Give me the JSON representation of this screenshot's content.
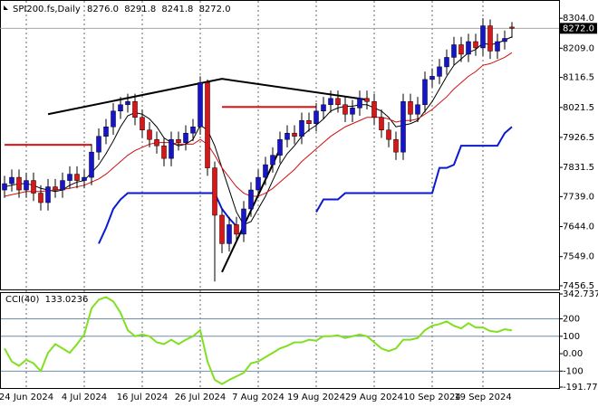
{
  "chart_data": [
    {
      "type": "candlestick",
      "title": "SPI200.fs,Daily",
      "title_values": [
        "8276.0",
        "8291.8",
        "8241.8",
        "8272.0"
      ],
      "last_price_label": "8272.0",
      "categories": [
        null,
        null,
        null,
        "24 Jun 2024",
        null,
        null,
        null,
        null,
        null,
        null,
        null,
        "4 Jul 2024",
        null,
        null,
        null,
        null,
        null,
        null,
        null,
        "16 Jul 2024",
        null,
        null,
        null,
        null,
        null,
        null,
        null,
        "26 Jul 2024",
        null,
        null,
        null,
        null,
        null,
        null,
        null,
        "7 Aug 2024",
        null,
        null,
        null,
        null,
        null,
        null,
        null,
        "19 Aug 2024",
        null,
        null,
        null,
        null,
        null,
        null,
        null,
        "29 Aug 2024",
        null,
        null,
        null,
        null,
        null,
        null,
        null,
        "10 Sep 2024",
        null,
        null,
        null,
        null,
        null,
        null,
        "19 Sep 2024",
        null,
        null,
        null,
        null
      ],
      "open": [
        7760,
        7780,
        7800,
        7760,
        7790,
        7750,
        7720,
        7770,
        7760,
        7790,
        7810,
        7790,
        7800,
        7880,
        7930,
        7960,
        8010,
        8030,
        8040,
        7990,
        7950,
        7920,
        7900,
        7860,
        7920,
        7910,
        7940,
        7960,
        8100,
        7830,
        7680,
        7590,
        7650,
        7620,
        7700,
        7760,
        7800,
        7840,
        7870,
        7920,
        7940,
        7930,
        7980,
        7970,
        8010,
        8030,
        8050,
        8030,
        8000,
        8020,
        8050,
        8040,
        7990,
        7950,
        7920,
        7880,
        8040,
        8000,
        8030,
        8110,
        8120,
        8150,
        8180,
        8220,
        8190,
        8230,
        8210,
        8280,
        8200,
        8230,
        8276
      ],
      "high": [
        7805,
        7825,
        7825,
        7815,
        7815,
        7775,
        7795,
        7795,
        7815,
        7835,
        7835,
        7825,
        7905,
        7955,
        7985,
        8035,
        8055,
        8065,
        8065,
        8015,
        7975,
        7945,
        7925,
        7945,
        7945,
        7965,
        7985,
        8120,
        8110,
        7850,
        7700,
        7675,
        7675,
        7725,
        7785,
        7825,
        7865,
        7895,
        7945,
        7965,
        7965,
        8005,
        8005,
        8035,
        8055,
        8075,
        8075,
        8055,
        8045,
        8075,
        8075,
        8065,
        8015,
        7975,
        7945,
        8065,
        8065,
        8055,
        8135,
        8145,
        8175,
        8205,
        8245,
        8245,
        8255,
        8255,
        8304,
        8300,
        8255,
        8265,
        8291.8
      ],
      "low": [
        7735,
        7755,
        7735,
        7735,
        7725,
        7695,
        7695,
        7735,
        7735,
        7765,
        7765,
        7765,
        7775,
        7855,
        7905,
        7935,
        7985,
        8005,
        7965,
        7925,
        7895,
        7875,
        7835,
        7835,
        7885,
        7885,
        7915,
        7935,
        7805,
        7470,
        7560,
        7565,
        7595,
        7595,
        7675,
        7735,
        7775,
        7815,
        7845,
        7895,
        7905,
        7905,
        7945,
        7945,
        7985,
        8005,
        8005,
        7975,
        7975,
        7995,
        8015,
        7965,
        7925,
        7895,
        7855,
        7855,
        7975,
        7975,
        8005,
        8085,
        8095,
        8125,
        8155,
        8165,
        8165,
        8185,
        8185,
        8175,
        8175,
        8205,
        8241.8
      ],
      "close": [
        7780,
        7800,
        7760,
        7790,
        7750,
        7720,
        7770,
        7760,
        7790,
        7810,
        7790,
        7800,
        7880,
        7930,
        7960,
        8010,
        8030,
        8040,
        7990,
        7950,
        7920,
        7900,
        7860,
        7920,
        7910,
        7940,
        7960,
        8100,
        7830,
        7680,
        7590,
        7650,
        7620,
        7700,
        7760,
        7800,
        7840,
        7870,
        7920,
        7940,
        7930,
        7980,
        7970,
        8010,
        8030,
        8050,
        8030,
        8000,
        8020,
        8050,
        8040,
        7990,
        7950,
        7920,
        7880,
        8040,
        8000,
        8030,
        8110,
        8120,
        8150,
        8180,
        8220,
        8190,
        8230,
        8210,
        8280,
        8200,
        8230,
        8240,
        8272
      ],
      "up_color": "#1414d2",
      "down_color": "#e01414",
      "series": [
        {
          "color": "#000000",
          "width": 1,
          "values": [
            7770,
            7775,
            7780,
            7780,
            7775,
            7765,
            7760,
            7755,
            7760,
            7775,
            7785,
            7790,
            7815,
            7840,
            7875,
            7915,
            7960,
            7995,
            8005,
            8000,
            7985,
            7960,
            7925,
            7910,
            7900,
            7905,
            7920,
            7965,
            7950,
            7900,
            7830,
            7760,
            7690,
            7650,
            7660,
            7700,
            7740,
            7790,
            7840,
            7875,
            7900,
            7930,
            7950,
            7965,
            7985,
            8010,
            8020,
            8025,
            8025,
            8030,
            8030,
            8020,
            8010,
            7990,
            7960,
            7965,
            7970,
            7980,
            8010,
            8040,
            8080,
            8120,
            8155,
            8175,
            8195,
            8205,
            8225,
            8220,
            8225,
            8235,
            8245
          ]
        },
        {
          "color": "#d01010",
          "width": 1,
          "values": [
            7740,
            7745,
            7750,
            7755,
            7755,
            7755,
            7758,
            7760,
            7762,
            7765,
            7770,
            7775,
            7785,
            7795,
            7810,
            7830,
            7850,
            7870,
            7885,
            7895,
            7905,
            7910,
            7910,
            7910,
            7905,
            7905,
            7905,
            7920,
            7905,
            7870,
            7830,
            7800,
            7770,
            7750,
            7740,
            7740,
            7750,
            7765,
            7785,
            7805,
            7825,
            7850,
            7870,
            7890,
            7910,
            7930,
            7945,
            7960,
            7970,
            7980,
            7990,
            7990,
            7990,
            7985,
            7975,
            7980,
            7980,
            7985,
            8000,
            8015,
            8035,
            8055,
            8080,
            8100,
            8120,
            8135,
            8155,
            8160,
            8170,
            8180,
            8195
          ]
        },
        {
          "color": "#0a1ad0",
          "width": 2,
          "values": [
            null,
            null,
            null,
            null,
            null,
            null,
            null,
            null,
            null,
            null,
            null,
            null,
            null,
            7590,
            7640,
            7700,
            7730,
            7750,
            7750,
            7750,
            7750,
            7750,
            7750,
            7750,
            7750,
            7750,
            7750,
            7750,
            7750,
            7750,
            7700,
            7670,
            7645,
            null,
            null,
            null,
            null,
            null,
            null,
            null,
            null,
            null,
            null,
            7690,
            7730,
            7730,
            7730,
            7750,
            7750,
            7750,
            7750,
            7750,
            7750,
            7750,
            7750,
            7750,
            7750,
            7750,
            7750,
            7750,
            7830,
            7830,
            7840,
            7900,
            7900,
            7900,
            7900,
            7900,
            7900,
            7940,
            7960
          ]
        }
      ],
      "levels": [
        {
          "color": "#e01010",
          "value": 7903,
          "from": 0,
          "to": 12
        },
        {
          "color": "#e01010",
          "value": 8023,
          "from": 30,
          "to": 43
        }
      ],
      "trendlines": [
        {
          "color": "#000000",
          "points": [
            [
              6,
              8000
            ],
            [
              30,
              8112
            ],
            [
              50,
              8046
            ]
          ]
        },
        {
          "color": "#000000",
          "points": [
            [
              30,
              7500
            ],
            [
              38,
              7890
            ]
          ]
        }
      ],
      "ylim": [
        7445,
        8356
      ],
      "yticks": [
        {
          "value": 8304,
          "label": "8304.0"
        },
        {
          "value": 8209,
          "label": "8209.0"
        },
        {
          "value": 8116.5,
          "label": "8116.5"
        },
        {
          "value": 8021.5,
          "label": "8021.5"
        },
        {
          "value": 7926.5,
          "label": "7926.5"
        },
        {
          "value": 7831.5,
          "label": "7831.5"
        },
        {
          "value": 7739,
          "label": "7739.0"
        },
        {
          "value": 7644,
          "label": "7644.0"
        },
        {
          "value": 7549,
          "label": "7549.0"
        },
        {
          "value": 7456.5,
          "label": "7456.5"
        }
      ],
      "x_grid": true
    },
    {
      "type": "line",
      "name": "CCI(40)",
      "color": "#80e020",
      "values": [
        30,
        -45,
        -70,
        -35,
        -55,
        -100,
        5,
        55,
        30,
        5,
        55,
        110,
        260,
        310,
        325,
        300,
        235,
        135,
        100,
        110,
        100,
        65,
        55,
        80,
        55,
        80,
        100,
        135,
        -45,
        -150,
        -175,
        -150,
        -130,
        -110,
        -55,
        -45,
        -20,
        5,
        30,
        45,
        65,
        65,
        80,
        75,
        100,
        100,
        105,
        90,
        100,
        110,
        100,
        65,
        30,
        15,
        30,
        80,
        80,
        90,
        135,
        160,
        170,
        185,
        160,
        145,
        175,
        150,
        150,
        130,
        125,
        140,
        133.0236
      ],
      "level_lines": [
        200,
        100,
        -100
      ],
      "level_color": "#6f8fb0",
      "ylim": [
        -191.7744,
        342.7377
      ],
      "yticks": [
        342.7377,
        200,
        100,
        {
          "value": 0,
          "label": "0.00"
        },
        -100,
        -191.7744
      ]
    }
  ]
}
